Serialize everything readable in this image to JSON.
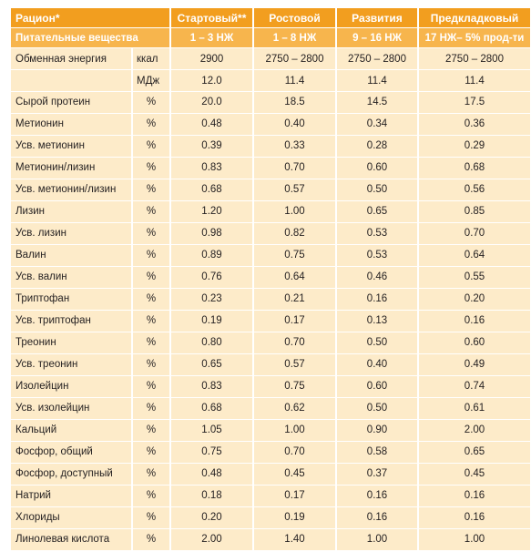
{
  "table": {
    "header": {
      "ration_label": "Рацион*",
      "columns": [
        "Стартовый**",
        "Ростовой",
        "Развития",
        "Предкладковый"
      ]
    },
    "subheader": {
      "label": "Питательные вещества",
      "columns": [
        "1 – 3 НЖ",
        "1 – 8 НЖ",
        "9 – 16 НЖ",
        "17 НЖ– 5% прод-ти"
      ]
    },
    "rows": [
      {
        "name": "Обменная энергия",
        "unit": "ккал",
        "values": [
          "2900",
          "2750 – 2800",
          "2750 – 2800",
          "2750 – 2800"
        ]
      },
      {
        "name": "",
        "unit": "МДж",
        "values": [
          "12.0",
          "11.4",
          "11.4",
          "11.4"
        ]
      },
      {
        "name": "Сырой протеин",
        "unit": "%",
        "values": [
          "20.0",
          "18.5",
          "14.5",
          "17.5"
        ]
      },
      {
        "name": "Метионин",
        "unit": "%",
        "values": [
          "0.48",
          "0.40",
          "0.34",
          "0.36"
        ]
      },
      {
        "name": "Усв. метионин",
        "unit": "%",
        "values": [
          "0.39",
          "0.33",
          "0.28",
          "0.29"
        ]
      },
      {
        "name": "Метионин/лизин",
        "unit": "%",
        "values": [
          "0.83",
          "0.70",
          "0.60",
          "0.68"
        ]
      },
      {
        "name": "Усв. метионин/лизин",
        "unit": "%",
        "values": [
          "0.68",
          "0.57",
          "0.50",
          "0.56"
        ]
      },
      {
        "name": "Лизин",
        "unit": "%",
        "values": [
          "1.20",
          "1.00",
          "0.65",
          "0.85"
        ]
      },
      {
        "name": "Усв. лизин",
        "unit": "%",
        "values": [
          "0.98",
          "0.82",
          "0.53",
          "0.70"
        ]
      },
      {
        "name": "Валин",
        "unit": "%",
        "values": [
          "0.89",
          "0.75",
          "0.53",
          "0.64"
        ]
      },
      {
        "name": "Усв. валин",
        "unit": "%",
        "values": [
          "0.76",
          "0.64",
          "0.46",
          "0.55"
        ]
      },
      {
        "name": "Триптофан",
        "unit": "%",
        "values": [
          "0.23",
          "0.21",
          "0.16",
          "0.20"
        ]
      },
      {
        "name": "Усв. триптофан",
        "unit": "%",
        "values": [
          "0.19",
          "0.17",
          "0.13",
          "0.16"
        ]
      },
      {
        "name": "Треонин",
        "unit": "%",
        "values": [
          "0.80",
          "0.70",
          "0.50",
          "0.60"
        ]
      },
      {
        "name": "Усв. треонин",
        "unit": "%",
        "values": [
          "0.65",
          "0.57",
          "0.40",
          "0.49"
        ]
      },
      {
        "name": "Изолейцин",
        "unit": "%",
        "values": [
          "0.83",
          "0.75",
          "0.60",
          "0.74"
        ]
      },
      {
        "name": "Усв. изолейцин",
        "unit": "%",
        "values": [
          "0.68",
          "0.62",
          "0.50",
          "0.61"
        ]
      },
      {
        "name": "Кальций",
        "unit": "%",
        "values": [
          "1.05",
          "1.00",
          "0.90",
          "2.00"
        ]
      },
      {
        "name": "Фосфор, общий",
        "unit": "%",
        "values": [
          "0.75",
          "0.70",
          "0.58",
          "0.65"
        ]
      },
      {
        "name": "Фосфор, доступный",
        "unit": "%",
        "values": [
          "0.48",
          "0.45",
          "0.37",
          "0.45"
        ]
      },
      {
        "name": "Натрий",
        "unit": "%",
        "values": [
          "0.18",
          "0.17",
          "0.16",
          "0.16"
        ]
      },
      {
        "name": "Хлориды",
        "unit": "%",
        "values": [
          "0.20",
          "0.19",
          "0.16",
          "0.16"
        ]
      },
      {
        "name": "Линолевая кислота",
        "unit": "%",
        "values": [
          "2.00",
          "1.40",
          "1.00",
          "1.00"
        ]
      }
    ]
  },
  "colors": {
    "header_bg": "#f29e1f",
    "subheader_bg": "#f7b54d",
    "cell_bg": "#fdebc9",
    "header_text": "#ffffff",
    "body_text": "#231f20"
  }
}
